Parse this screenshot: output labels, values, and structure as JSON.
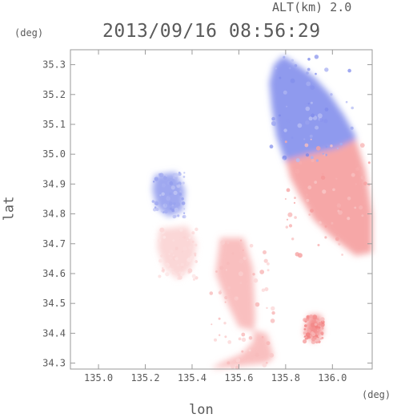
{
  "header": {
    "altitude_text": "ALT(km) 2.0",
    "datetime": "2013/09/16 08:56:29"
  },
  "chart_data": {
    "type": "heatmap",
    "title": "2013/09/16 08:56:29",
    "xlabel": "lon",
    "ylabel": "lat",
    "x_unit": "(deg)",
    "y_unit": "(deg)",
    "xlim": [
      134.88,
      136.17
    ],
    "ylim": [
      34.28,
      35.35
    ],
    "x_ticks": [
      "135.0",
      "135.2",
      "135.4",
      "135.6",
      "135.8",
      "136.0"
    ],
    "y_ticks": [
      "34.3",
      "34.4",
      "34.5",
      "34.6",
      "34.7",
      "34.8",
      "34.9",
      "35.0",
      "35.1",
      "35.2",
      "35.3"
    ],
    "colormap": {
      "negative": "#5f6ee6",
      "zero": "#ffffff",
      "positive": "#ef5f5f"
    },
    "regions": [
      {
        "name": "northeast-negative-sector",
        "polygon": [
          [
            135.79,
            35.33
          ],
          [
            135.85,
            35.3
          ],
          [
            135.92,
            35.26
          ],
          [
            135.99,
            35.2
          ],
          [
            136.05,
            35.13
          ],
          [
            136.1,
            35.06
          ],
          [
            136.1,
            35.0
          ],
          [
            135.98,
            35.01
          ],
          [
            135.86,
            34.99
          ],
          [
            135.8,
            34.97
          ],
          [
            135.76,
            35.06
          ],
          [
            135.74,
            35.16
          ],
          [
            135.73,
            35.24
          ],
          [
            135.75,
            35.3
          ]
        ],
        "level": -0.7
      },
      {
        "name": "east-positive-sector",
        "polygon": [
          [
            135.8,
            34.98
          ],
          [
            135.9,
            35.0
          ],
          [
            136.02,
            35.02
          ],
          [
            136.1,
            35.05
          ],
          [
            136.14,
            34.95
          ],
          [
            136.17,
            34.8
          ],
          [
            136.17,
            34.67
          ],
          [
            136.1,
            34.66
          ],
          [
            136.0,
            34.72
          ],
          [
            135.92,
            34.78
          ],
          [
            135.86,
            34.86
          ],
          [
            135.82,
            34.92
          ]
        ],
        "level": 0.55
      },
      {
        "name": "western-negative-blob",
        "polygon": [
          [
            135.24,
            34.93
          ],
          [
            135.33,
            34.94
          ],
          [
            135.37,
            34.88
          ],
          [
            135.36,
            34.81
          ],
          [
            135.3,
            34.79
          ],
          [
            135.25,
            34.82
          ],
          [
            135.23,
            34.88
          ]
        ],
        "level": -0.6
      },
      {
        "name": "southern-positive-band",
        "polygon": [
          [
            135.52,
            34.72
          ],
          [
            135.62,
            34.72
          ],
          [
            135.66,
            34.62
          ],
          [
            135.67,
            34.45
          ],
          [
            135.66,
            34.37
          ],
          [
            135.61,
            34.33
          ],
          [
            135.52,
            34.3
          ],
          [
            135.48,
            34.28
          ],
          [
            135.72,
            34.3
          ],
          [
            135.75,
            34.32
          ],
          [
            135.72,
            34.4
          ],
          [
            135.6,
            34.42
          ],
          [
            135.55,
            34.5
          ],
          [
            135.5,
            34.6
          ]
        ],
        "level": 0.4
      },
      {
        "name": "southeast-positive-cell",
        "polygon": [
          [
            135.9,
            34.46
          ],
          [
            135.95,
            34.46
          ],
          [
            135.96,
            34.4
          ],
          [
            135.92,
            34.37
          ],
          [
            135.88,
            34.4
          ]
        ],
        "level": 0.7
      },
      {
        "name": "mid-west-positive-scatter",
        "polygon": [
          [
            135.26,
            34.75
          ],
          [
            135.38,
            34.76
          ],
          [
            135.42,
            34.7
          ],
          [
            135.4,
            34.62
          ],
          [
            135.34,
            34.58
          ],
          [
            135.28,
            34.62
          ],
          [
            135.25,
            34.69
          ]
        ],
        "level": 0.25
      }
    ]
  }
}
